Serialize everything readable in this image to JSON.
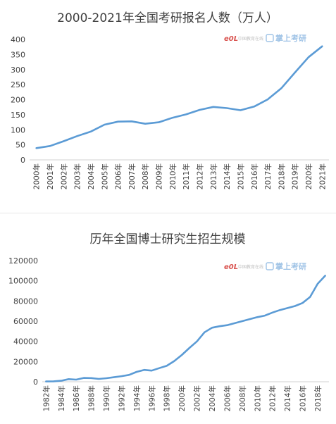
{
  "chart_data": [
    {
      "type": "line",
      "title": "2000-2021年全国考研报名人数（万人）",
      "xlabel": "",
      "ylabel": "",
      "ylim": [
        0,
        400
      ],
      "yticks": [
        0,
        50,
        100,
        150,
        200,
        250,
        300,
        350,
        400
      ],
      "grid": false,
      "color": "#5b9bd5",
      "x": [
        "2000年",
        "2001年",
        "2002年",
        "2003年",
        "2004年",
        "2005年",
        "2006年",
        "2007年",
        "2008年",
        "2009年",
        "2010年",
        "2011年",
        "2012年",
        "2013年",
        "2014年",
        "2015年",
        "2016年",
        "2017年",
        "2018年",
        "2019年",
        "2020年",
        "2021年"
      ],
      "y": [
        39,
        46,
        62,
        79,
        94,
        117,
        127,
        128,
        120,
        125,
        140,
        151,
        166,
        176,
        172,
        165,
        177,
        201,
        238,
        290,
        341,
        377
      ]
    },
    {
      "type": "line",
      "title": "历年全国博士研究生招生规模",
      "xlabel": "",
      "ylabel": "",
      "ylim": [
        0,
        120000
      ],
      "yticks": [
        0,
        20000,
        40000,
        60000,
        80000,
        100000,
        120000
      ],
      "grid": false,
      "color": "#5b9bd5",
      "x": [
        "1982年",
        "1983年",
        "1984年",
        "1985年",
        "1986年",
        "1987年",
        "1988年",
        "1989年",
        "1990年",
        "1991年",
        "1992年",
        "1993年",
        "1994年",
        "1995年",
        "1996年",
        "1997年",
        "1998年",
        "1999年",
        "2000年",
        "2001年",
        "2002年",
        "2003年",
        "2004年",
        "2005年",
        "2006年",
        "2007年",
        "2008年",
        "2009年",
        "2010年",
        "2011年",
        "2012年",
        "2013年",
        "2014年",
        "2015年",
        "2016年",
        "2017年",
        "2018年",
        "2019年"
      ],
      "xtick_labels": [
        "1982年",
        "1984年",
        "1986年",
        "1988年",
        "1990年",
        "1992年",
        "1994年",
        "1996年",
        "1998年",
        "2000年",
        "2002年",
        "2004年",
        "2006年",
        "2008年",
        "2010年",
        "2012年",
        "2014年",
        "2016年",
        "2018年"
      ],
      "y": [
        300,
        400,
        1000,
        2600,
        2100,
        3800,
        3600,
        2800,
        3500,
        4500,
        5500,
        6800,
        9800,
        11700,
        11000,
        13500,
        15800,
        20500,
        26500,
        33500,
        40000,
        49000,
        53500,
        55000,
        56000,
        58000,
        60000,
        62000,
        64000,
        65500,
        68500,
        71000,
        73000,
        75000,
        78000,
        84000,
        97000,
        105000
      ]
    }
  ],
  "watermark": {
    "logo_text": "e0L",
    "site_name": "中国教育在线",
    "brand": "掌上考研",
    "logo_color": "#d9534f",
    "brand_color": "#9fc3e6"
  }
}
